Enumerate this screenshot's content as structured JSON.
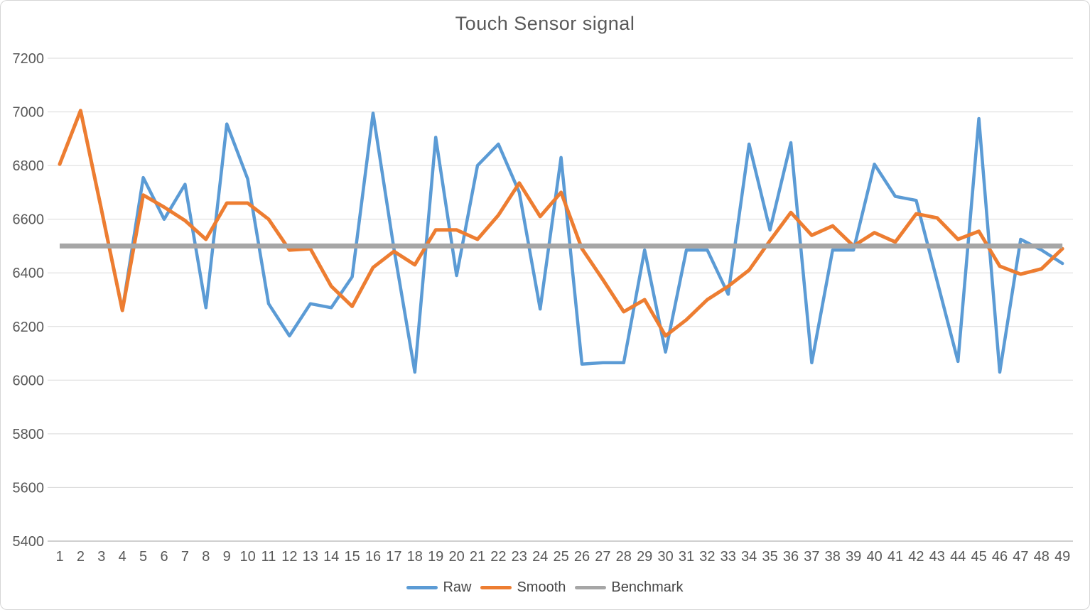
{
  "window": {
    "background": "#ffffff",
    "border_color": "#d5d5d5"
  },
  "chart_data": {
    "type": "line",
    "title": "Touch Sensor signal",
    "xlabel": "",
    "ylabel": "",
    "ylim": [
      5400,
      7200
    ],
    "y_ticks": [
      7200,
      7000,
      6800,
      6600,
      6400,
      6200,
      6000,
      5800,
      5600,
      5400
    ],
    "grid": true,
    "legend_position": "bottom",
    "grid_color": "#d9d9d9",
    "axis_color": "#bfbfbf",
    "text_color": "#595959",
    "title_color": "#595959",
    "x": [
      1,
      2,
      3,
      4,
      5,
      6,
      7,
      8,
      9,
      10,
      11,
      12,
      13,
      14,
      15,
      16,
      17,
      18,
      19,
      20,
      21,
      22,
      23,
      24,
      25,
      26,
      27,
      28,
      29,
      30,
      31,
      32,
      33,
      34,
      35,
      36,
      37,
      38,
      39,
      40,
      41,
      42,
      43,
      44,
      45,
      46,
      47,
      48,
      49
    ],
    "series": [
      {
        "name": "Raw",
        "color": "#5b9bd5",
        "stroke_width": 4.5,
        "values": [
          6805,
          7005,
          6635,
          6260,
          6755,
          6600,
          6730,
          6270,
          6955,
          6750,
          6285,
          6165,
          6285,
          6270,
          6385,
          6995,
          6490,
          6030,
          6905,
          6390,
          6800,
          6880,
          6700,
          6265,
          6830,
          6060,
          6065,
          6065,
          6485,
          6105,
          6485,
          6485,
          6320,
          6880,
          6560,
          6885,
          6065,
          6485,
          6485,
          6805,
          6685,
          6670,
          6370,
          6070,
          6975,
          6030,
          6525,
          6485,
          6435
        ]
      },
      {
        "name": "Smooth",
        "color": "#ed7d31",
        "stroke_width": 5,
        "values": [
          6805,
          7005,
          6635,
          6260,
          6690,
          6645,
          6595,
          6525,
          6660,
          6660,
          6600,
          6485,
          6490,
          6350,
          6275,
          6420,
          6480,
          6430,
          6560,
          6560,
          6525,
          6615,
          6735,
          6610,
          6700,
          6490,
          6375,
          6255,
          6300,
          6165,
          6225,
          6300,
          6350,
          6410,
          6520,
          6625,
          6540,
          6575,
          6500,
          6550,
          6515,
          6620,
          6605,
          6525,
          6555,
          6425,
          6395,
          6415,
          6490
        ]
      },
      {
        "name": "Benchmark",
        "color": "#a6a6a6",
        "stroke_width": 7,
        "constant": 6500
      }
    ]
  }
}
